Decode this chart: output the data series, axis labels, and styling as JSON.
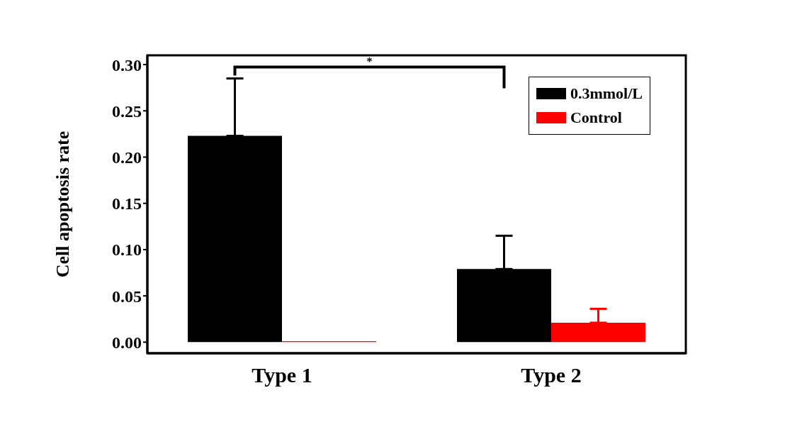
{
  "chart_data": {
    "type": "bar",
    "ylabel": "Cell apoptosis rate",
    "categories": [
      "Type 1",
      "Type 2"
    ],
    "series": [
      {
        "name": "0.3mmol/L",
        "color": "#000000",
        "values": [
          0.223,
          0.079
        ],
        "errors": [
          [
            0.223,
            0.285
          ],
          [
            0.079,
            0.115
          ]
        ]
      },
      {
        "name": "Control",
        "color": "#ff0000",
        "values": [
          0.001,
          0.021
        ],
        "errors": [
          null,
          [
            0.021,
            0.036
          ]
        ]
      }
    ],
    "ylim": [
      -0.012,
      0.31
    ],
    "yticks": [
      {
        "value": 0,
        "label": "0.00"
      },
      {
        "value": 0.05,
        "label": "0.05"
      },
      {
        "value": 0.1,
        "label": "0.10"
      },
      {
        "value": 0.15,
        "label": "0.15"
      },
      {
        "value": 0.2,
        "label": "0.20"
      },
      {
        "value": 0.25,
        "label": "0.25"
      },
      {
        "value": 0.3,
        "label": "0.30"
      }
    ],
    "legend": "top right",
    "grid": false,
    "annotations": [
      "*"
    ]
  }
}
